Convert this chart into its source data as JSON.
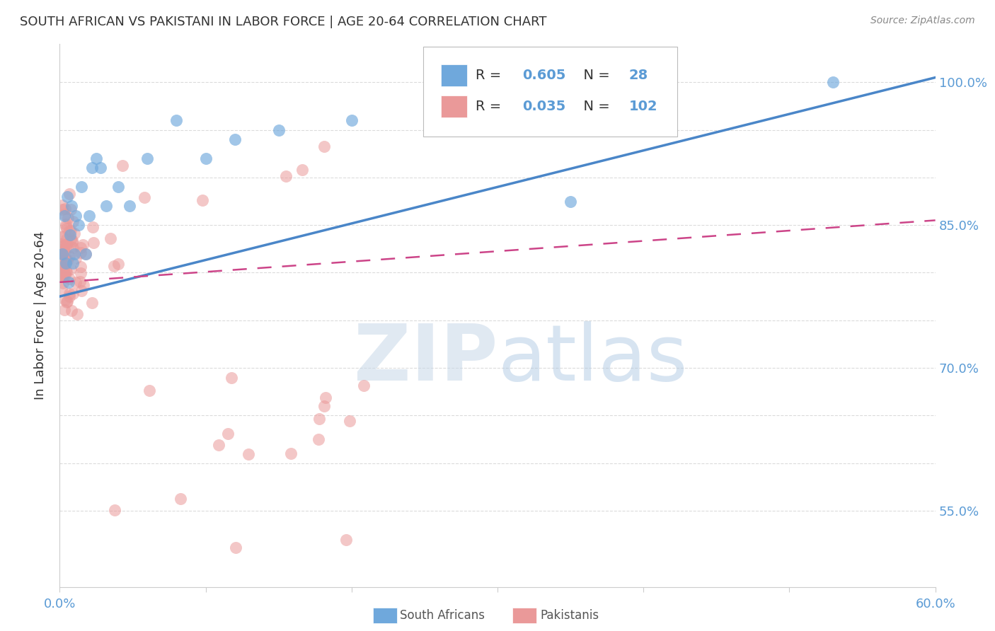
{
  "title": "SOUTH AFRICAN VS PAKISTANI IN LABOR FORCE | AGE 20-64 CORRELATION CHART",
  "source": "Source: ZipAtlas.com",
  "ylabel": "In Labor Force | Age 20-64",
  "xlim": [
    0.0,
    0.6
  ],
  "ylim": [
    0.47,
    1.04
  ],
  "sa_color": "#6fa8dc",
  "pk_color": "#ea9999",
  "sa_line_color": "#4a86c8",
  "pk_line_color": "#cc4488",
  "sa_R": 0.605,
  "sa_N": 28,
  "pk_R": 0.035,
  "pk_N": 102,
  "sa_line_x0": 0.0,
  "sa_line_y0": 0.775,
  "sa_line_x1": 0.6,
  "sa_line_y1": 1.005,
  "pk_line_x0": 0.0,
  "pk_line_y0": 0.79,
  "pk_line_x1": 0.6,
  "pk_line_y1": 0.855,
  "watermark_zip": "ZIP",
  "watermark_atlas": "atlas",
  "background_color": "#ffffff",
  "grid_color": "#cccccc",
  "title_color": "#333333",
  "axis_label_color": "#333333",
  "tick_color": "#5b9bd5",
  "source_color": "#888888",
  "legend_text_color": "#333333",
  "x_tick_positions": [
    0.0,
    0.1,
    0.2,
    0.3,
    0.4,
    0.5,
    0.6
  ],
  "x_tick_labels": [
    "0.0%",
    "",
    "",
    "",
    "",
    "",
    "60.0%"
  ],
  "y_tick_positions": [
    0.55,
    0.6,
    0.65,
    0.7,
    0.75,
    0.8,
    0.85,
    0.9,
    0.95,
    1.0
  ],
  "y_tick_labels": [
    "55.0%",
    "",
    "",
    "70.0%",
    "",
    "",
    "85.0%",
    "",
    "",
    "100.0%"
  ]
}
